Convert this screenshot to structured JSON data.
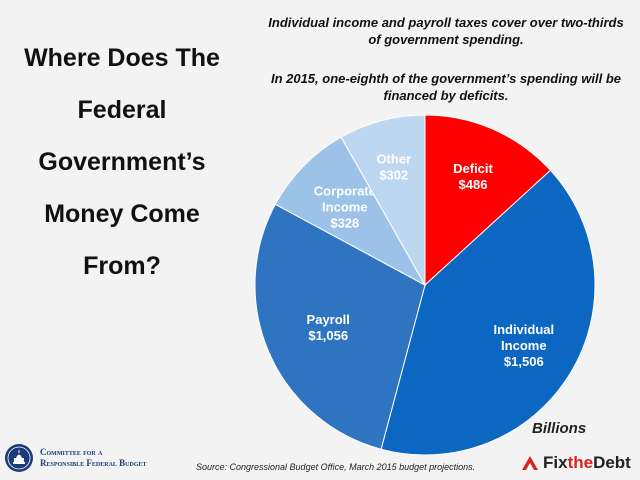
{
  "title_lines": [
    "Where Does The",
    "Federal",
    "Government’s",
    "Money Come",
    "From?"
  ],
  "notes": [
    "Individual income and payroll taxes cover over two-thirds of government spending.",
    "In 2015, one-eighth of the government’s spending will be financed by deficits."
  ],
  "units_label": "Billions",
  "source": "Source: Congressional Budget Office, March 2015 budget projections.",
  "logo": {
    "line1": "Committee for a",
    "line2": "Responsible Federal Budget"
  },
  "fixthedebt": {
    "part1": "Fix",
    "part2": "the",
    "part3": "Debt"
  },
  "chart_data": {
    "type": "pie",
    "slices": [
      {
        "label_lines": [
          "Deficit",
          "$486"
        ],
        "value": 486,
        "color": "#ff0000",
        "text_color": "#ffffff"
      },
      {
        "label_lines": [
          "Individual",
          "Income",
          "$1,506"
        ],
        "value": 1506,
        "color": "#0b67c2",
        "text_color": "#ffffff"
      },
      {
        "label_lines": [
          "Payroll",
          "$1,056"
        ],
        "value": 1056,
        "color": "#2f74c0",
        "text_color": "#ffffff"
      },
      {
        "label_lines": [
          "Corporate",
          "Income",
          "$328"
        ],
        "value": 328,
        "color": "#9dc2e8",
        "text_color": "#ffffff"
      },
      {
        "label_lines": [
          "Other",
          "$302"
        ],
        "value": 302,
        "color": "#bdd7f1",
        "text_color": "#ffffff"
      }
    ]
  }
}
